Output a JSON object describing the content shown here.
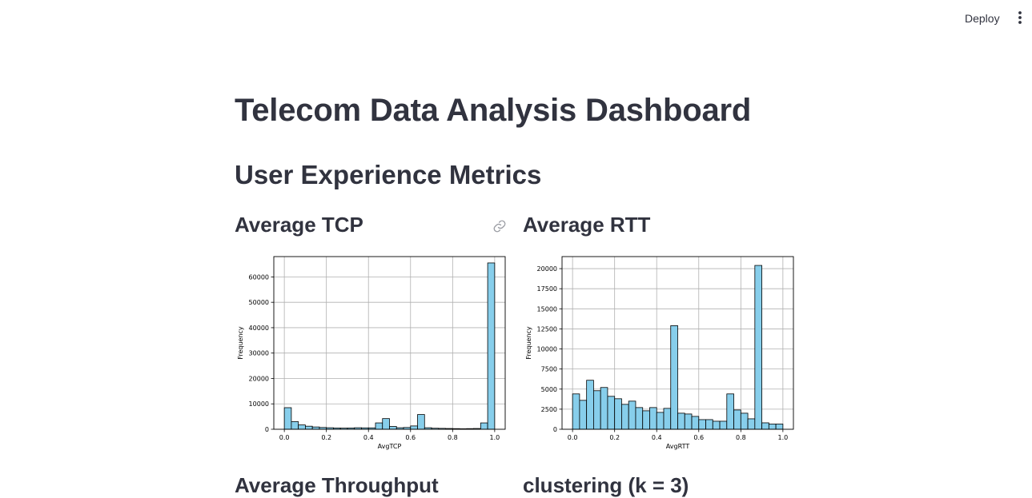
{
  "header": {
    "deploy_label": "Deploy",
    "menu_icon": "vertical-ellipsis-icon"
  },
  "page": {
    "title": "Telecom Data Analysis Dashboard",
    "subtitle": "User Experience Metrics",
    "sections": {
      "tcp": "Average TCP",
      "rtt": "Average RTT",
      "throughput": "Average Throughput",
      "clustering": "clustering (k = 3)"
    },
    "anchor_icon": "link-icon"
  },
  "colors": {
    "bar_fill": "#87ceeb",
    "bar_edge": "#000000",
    "text": "#31333f"
  },
  "chart_data": [
    {
      "type": "bar",
      "histogram": true,
      "title": "",
      "xlabel": "AvgTCP",
      "ylabel": "Frequency",
      "xlim": [
        -0.05,
        1.05
      ],
      "ylim": [
        0,
        68000
      ],
      "xticks": [
        0.0,
        0.2,
        0.4,
        0.6,
        0.8,
        1.0
      ],
      "xtick_labels": [
        "0.0",
        "0.2",
        "0.4",
        "0.6",
        "0.8",
        "1.0"
      ],
      "yticks": [
        0,
        10000,
        20000,
        30000,
        40000,
        50000,
        60000
      ],
      "ytick_labels": [
        "0",
        "10000",
        "20000",
        "30000",
        "40000",
        "50000",
        "60000"
      ],
      "grid": true,
      "bins": 30,
      "bin_range": [
        0.0,
        1.0
      ],
      "values": [
        8500,
        3000,
        1700,
        1200,
        900,
        700,
        600,
        500,
        450,
        500,
        600,
        550,
        550,
        2500,
        4200,
        1100,
        600,
        700,
        1300,
        5800,
        600,
        400,
        350,
        300,
        250,
        200,
        250,
        300,
        2500,
        65500
      ]
    },
    {
      "type": "bar",
      "histogram": true,
      "title": "",
      "xlabel": "AvgRTT",
      "ylabel": "Frequency",
      "xlim": [
        -0.05,
        1.05
      ],
      "ylim": [
        0,
        21500
      ],
      "xticks": [
        0.0,
        0.2,
        0.4,
        0.6,
        0.8,
        1.0
      ],
      "xtick_labels": [
        "0.0",
        "0.2",
        "0.4",
        "0.6",
        "0.8",
        "1.0"
      ],
      "yticks": [
        0,
        2500,
        5000,
        7500,
        10000,
        12500,
        15000,
        17500,
        20000
      ],
      "ytick_labels": [
        "0",
        "2500",
        "5000",
        "7500",
        "10000",
        "12500",
        "15000",
        "17500",
        "20000"
      ],
      "grid": true,
      "bins": 30,
      "bin_range": [
        0.0,
        1.0
      ],
      "values": [
        4400,
        3600,
        6100,
        4800,
        5200,
        4100,
        3800,
        3100,
        3500,
        2700,
        2300,
        2700,
        2100,
        2600,
        12900,
        2000,
        1900,
        1600,
        1200,
        1200,
        1000,
        1000,
        4400,
        2400,
        2000,
        1300,
        20400,
        800,
        650,
        650
      ]
    }
  ]
}
